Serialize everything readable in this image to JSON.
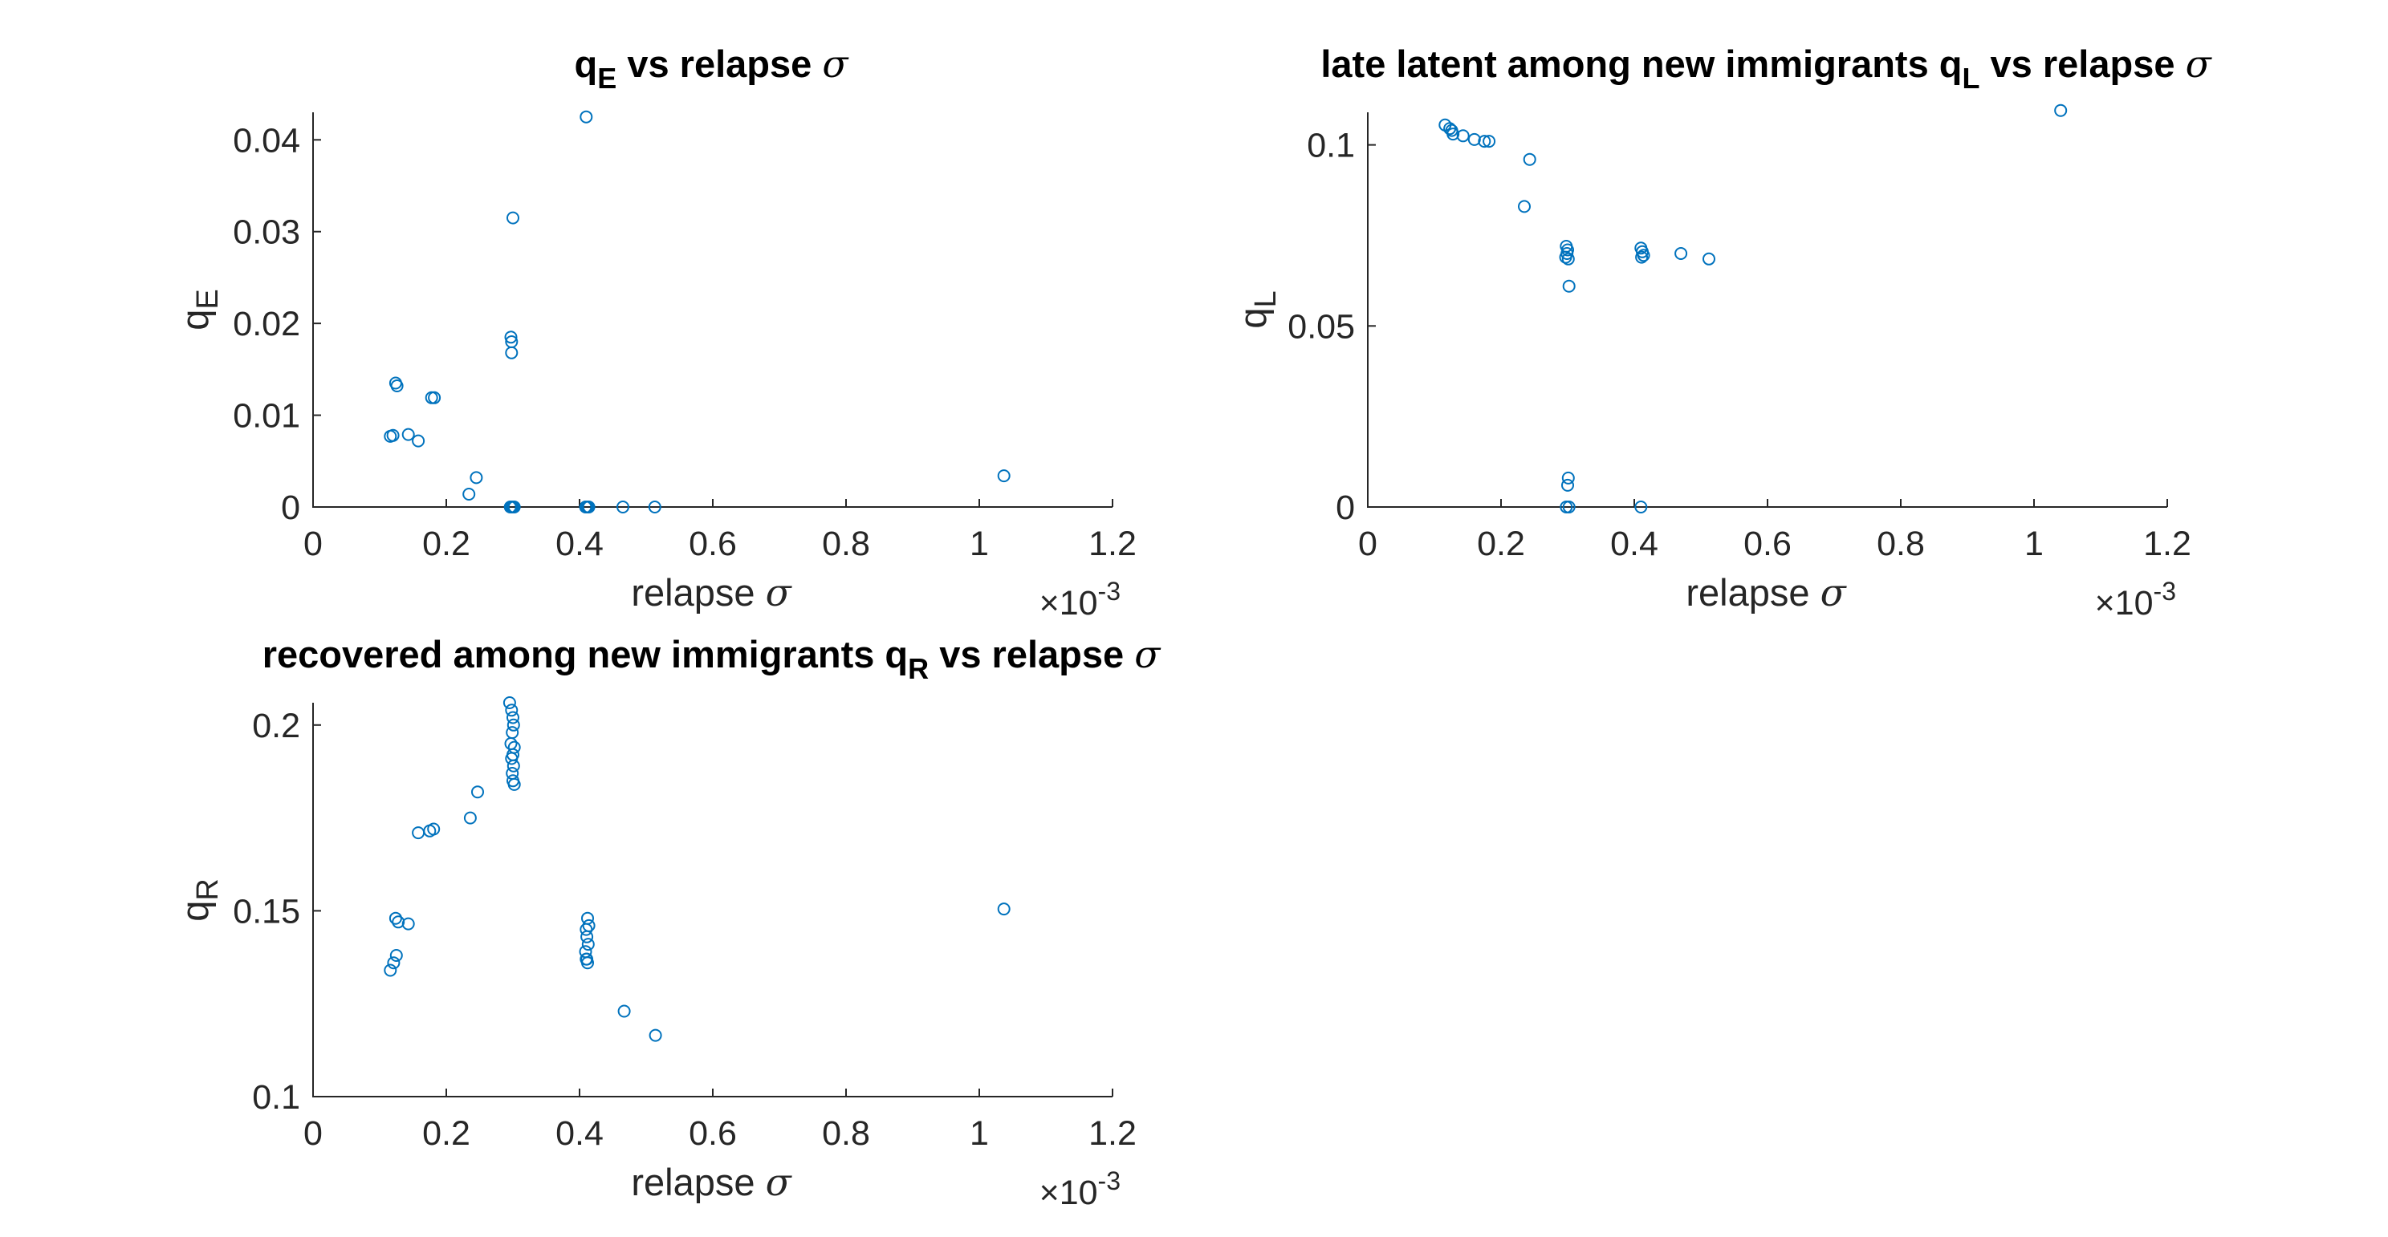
{
  "figure": {
    "colors": {
      "marker": "#0072BD",
      "axis": "#262626",
      "title": "#000000"
    }
  },
  "chart_data": [
    {
      "type": "scatter",
      "title": "q_E vs relapse σ",
      "xlabel": "relapse σ",
      "ylabel": "q_E",
      "x_exponent_label": "×10^-3",
      "xlim": [
        0,
        1.2
      ],
      "ylim": [
        0,
        0.043
      ],
      "xticks": [
        0,
        0.2,
        0.4,
        0.6,
        0.8,
        1,
        1.2
      ],
      "xtick_labels": [
        "0",
        "0.2",
        "0.4",
        "0.6",
        "0.8",
        "1",
        "1.2"
      ],
      "yticks": [
        0,
        0.01,
        0.02,
        0.03,
        0.04
      ],
      "ytick_labels": [
        "0",
        "0.01",
        "0.02",
        "0.03",
        "0.04"
      ],
      "grid": false,
      "marker": "circle",
      "series": [
        {
          "x": [
            0.41,
            0.3,
            0.297,
            0.298,
            0.298,
            0.124,
            0.126,
            0.178,
            0.182,
            0.116,
            0.12,
            0.143,
            0.158,
            0.245,
            0.234,
            1.037,
            0.296,
            0.3,
            0.302,
            0.298,
            0.41,
            0.412,
            0.414,
            0.409,
            0.465,
            0.513
          ],
          "y": [
            0.0425,
            0.0315,
            0.0185,
            0.018,
            0.0168,
            0.0135,
            0.0132,
            0.0119,
            0.0119,
            0.0077,
            0.0078,
            0.0079,
            0.0072,
            0.0032,
            0.0014,
            0.0034,
            0.0,
            0.0,
            0.0,
            0.0,
            0.0,
            0.0,
            0.0,
            0.0,
            0.0,
            0.0
          ]
        }
      ]
    },
    {
      "type": "scatter",
      "title": "late latent among new immigrants q_L vs relapse σ",
      "xlabel": "relapse σ",
      "ylabel": "q_L",
      "x_exponent_label": "×10^-3",
      "xlim": [
        0,
        1.2
      ],
      "ylim": [
        0,
        0.109
      ],
      "xticks": [
        0,
        0.2,
        0.4,
        0.6,
        0.8,
        1,
        1.2
      ],
      "xtick_labels": [
        "0",
        "0.2",
        "0.4",
        "0.6",
        "0.8",
        "1",
        "1.2"
      ],
      "yticks": [
        0,
        0.05,
        0.1
      ],
      "ytick_labels": [
        "0",
        "0.05",
        "0.1"
      ],
      "grid": false,
      "marker": "circle",
      "series": [
        {
          "x": [
            0.116,
            0.123,
            0.126,
            0.128,
            0.143,
            0.16,
            0.175,
            0.182,
            0.243,
            0.235,
            1.04,
            0.298,
            0.3,
            0.299,
            0.297,
            0.301,
            0.41,
            0.412,
            0.414,
            0.411,
            0.47,
            0.512,
            0.302,
            0.301,
            0.3,
            0.298,
            0.302,
            0.41
          ],
          "y": [
            0.1055,
            0.1045,
            0.104,
            0.103,
            0.1025,
            0.1015,
            0.101,
            0.101,
            0.096,
            0.083,
            0.1095,
            0.072,
            0.071,
            0.07,
            0.069,
            0.0685,
            0.0715,
            0.0705,
            0.0695,
            0.069,
            0.07,
            0.0685,
            0.061,
            0.008,
            0.006,
            0.0,
            0.0,
            0.0
          ]
        }
      ]
    },
    {
      "type": "scatter",
      "title": "recovered among new immigrants q_R vs relapse σ",
      "xlabel": "relapse σ",
      "ylabel": "q_R",
      "x_exponent_label": "×10^-3",
      "xlim": [
        0,
        1.2
      ],
      "ylim": [
        0.1,
        0.206
      ],
      "xticks": [
        0,
        0.2,
        0.4,
        0.6,
        0.8,
        1,
        1.2
      ],
      "xtick_labels": [
        "0",
        "0.2",
        "0.4",
        "0.6",
        "0.8",
        "1",
        "1.2"
      ],
      "yticks": [
        0.1,
        0.15,
        0.2
      ],
      "ytick_labels": [
        "0.1",
        "0.15",
        "0.2"
      ],
      "grid": false,
      "marker": "circle",
      "series": [
        {
          "x": [
            0.295,
            0.298,
            0.3,
            0.301,
            0.299,
            0.297,
            0.302,
            0.3,
            0.298,
            0.301,
            0.299,
            0.3,
            0.302,
            0.236,
            0.247,
            0.158,
            0.175,
            0.181,
            0.124,
            0.128,
            0.143,
            1.037,
            0.116,
            0.121,
            0.125,
            0.412,
            0.414,
            0.41,
            0.411,
            0.413,
            0.409,
            0.411,
            0.412,
            0.41,
            0.467,
            0.514
          ],
          "y": [
            0.206,
            0.204,
            0.202,
            0.2,
            0.198,
            0.195,
            0.194,
            0.192,
            0.191,
            0.189,
            0.187,
            0.185,
            0.184,
            0.175,
            0.182,
            0.171,
            0.1715,
            0.172,
            0.148,
            0.147,
            0.1465,
            0.1505,
            0.134,
            0.136,
            0.138,
            0.148,
            0.146,
            0.145,
            0.143,
            0.141,
            0.139,
            0.137,
            0.136,
            0.137,
            0.123,
            0.1165
          ]
        }
      ]
    }
  ]
}
